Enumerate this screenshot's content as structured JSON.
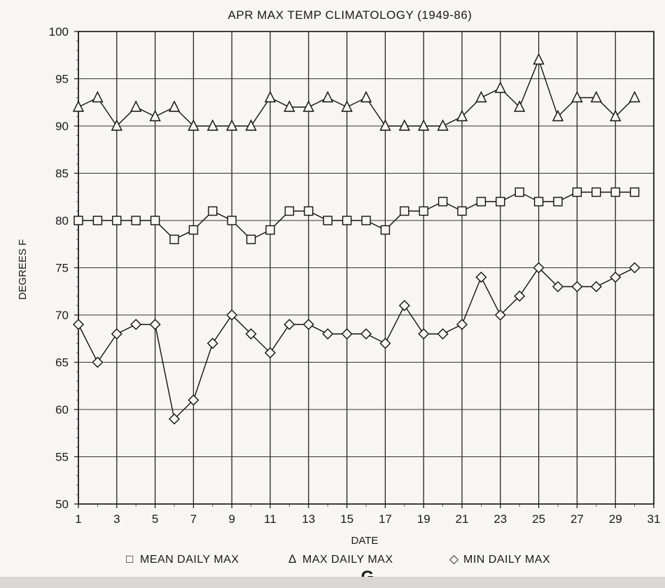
{
  "chart_data": {
    "type": "line",
    "title": "APR MAX TEMP CLIMATOLOGY (1949-86)",
    "xlabel": "DATE",
    "ylabel": "DEGREES F",
    "xlim": [
      1,
      31
    ],
    "ylim": [
      50,
      100
    ],
    "xticks": [
      1,
      3,
      5,
      7,
      9,
      11,
      13,
      15,
      17,
      19,
      21,
      23,
      25,
      27,
      29,
      31
    ],
    "yticks": [
      50,
      55,
      60,
      65,
      70,
      75,
      80,
      85,
      90,
      95,
      100
    ],
    "grid": true,
    "legend_position": "bottom",
    "x": [
      1,
      2,
      3,
      4,
      5,
      6,
      7,
      8,
      9,
      10,
      11,
      12,
      13,
      14,
      15,
      16,
      17,
      18,
      19,
      20,
      21,
      22,
      23,
      24,
      25,
      26,
      27,
      28,
      29,
      30
    ],
    "series": [
      {
        "name": "MEAN DAILY MAX",
        "marker": "square",
        "legend_symbol": "□",
        "values": [
          80,
          80,
          80,
          80,
          80,
          78,
          79,
          81,
          80,
          78,
          79,
          81,
          81,
          80,
          80,
          80,
          79,
          81,
          81,
          82,
          81,
          82,
          82,
          83,
          82,
          82,
          83,
          83,
          83,
          83
        ]
      },
      {
        "name": "MAX DAILY MAX",
        "marker": "triangle",
        "legend_symbol": "Δ",
        "values": [
          92,
          93,
          90,
          92,
          91,
          92,
          90,
          90,
          90,
          90,
          93,
          92,
          92,
          93,
          92,
          93,
          90,
          90,
          90,
          90,
          91,
          93,
          94,
          92,
          97,
          91,
          93,
          93,
          91,
          93
        ]
      },
      {
        "name": "MIN DAILY MAX",
        "marker": "diamond",
        "legend_symbol": "◇",
        "values": [
          69,
          65,
          68,
          69,
          69,
          59,
          61,
          67,
          70,
          68,
          66,
          69,
          69,
          68,
          68,
          68,
          67,
          71,
          68,
          68,
          69,
          74,
          70,
          72,
          75,
          73,
          73,
          73,
          74,
          75
        ]
      }
    ],
    "figure_label": "G"
  }
}
